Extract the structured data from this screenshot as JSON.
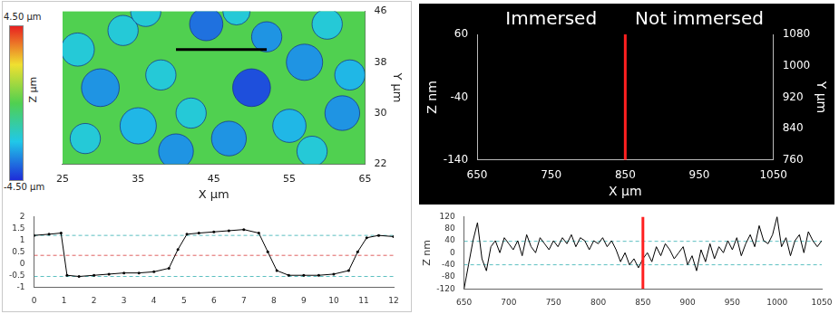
{
  "chart_data": [
    {
      "type": "bubble",
      "x_label": "X µm",
      "y_label": "Y µm",
      "z_label": "Z µm",
      "xlim": [
        25,
        65
      ],
      "xticks": [
        25,
        35,
        45,
        55,
        65
      ],
      "ylim": [
        22,
        46
      ],
      "yticks": [
        22,
        30,
        38,
        46
      ],
      "x": [
        27,
        30,
        33,
        35,
        28,
        38,
        40,
        42,
        44,
        47,
        50,
        52,
        55,
        57,
        60,
        62,
        58,
        63,
        48,
        36
      ],
      "y": [
        40,
        34,
        43,
        28,
        26,
        36,
        24,
        30,
        44,
        26,
        34,
        42,
        28,
        38,
        44,
        30,
        24,
        36,
        46,
        46
      ],
      "radius": [
        2.2,
        2.5,
        2,
        2.4,
        2,
        2,
        2.3,
        2,
        2.2,
        2.3,
        2.5,
        2,
        2.2,
        2.4,
        2,
        2.3,
        2,
        2,
        1.8,
        2
      ],
      "depth": [
        -2,
        -3,
        -2,
        -2.5,
        -2,
        -2,
        -3,
        -2,
        -3.5,
        -3,
        -4,
        -3,
        -2.5,
        -3,
        -2,
        -3,
        -2,
        -2.5,
        -2,
        -2
      ],
      "surface_level": 0,
      "colorbar": {
        "range": [
          -4.5,
          4.5
        ],
        "ticks": [
          {
            "value": 4.5,
            "label": "4.50 µm"
          },
          {
            "value": -4.5,
            "label": "-4.50 µm"
          }
        ]
      },
      "profile_line": {
        "x": [
          40,
          52
        ],
        "y": [
          40,
          40
        ],
        "color": "#000000"
      },
      "grid": false
    },
    {
      "type": "line",
      "marker": "dot",
      "color": "#000000",
      "xlim": [
        0,
        12
      ],
      "xticks": [
        0,
        1,
        2,
        3,
        4,
        5,
        6,
        7,
        8,
        9,
        10,
        11,
        12
      ],
      "ylim": [
        -1,
        2
      ],
      "yticks": [
        -1,
        -0.5,
        0,
        0.5,
        1,
        1.5,
        2
      ],
      "x": [
        0,
        0.5,
        0.9,
        1.1,
        1.5,
        2,
        2.5,
        3,
        3.5,
        4,
        4.5,
        4.8,
        5.1,
        5.5,
        6,
        6.5,
        7,
        7.5,
        7.8,
        8.1,
        8.5,
        9,
        9.5,
        10,
        10.5,
        10.8,
        11.1,
        11.5,
        12
      ],
      "values": [
        1.2,
        1.25,
        1.3,
        -0.5,
        -0.55,
        -0.5,
        -0.45,
        -0.4,
        -0.4,
        -0.35,
        -0.2,
        0.6,
        1.25,
        1.3,
        1.35,
        1.4,
        1.45,
        1.3,
        0.5,
        -0.3,
        -0.5,
        -0.5,
        -0.5,
        -0.45,
        -0.3,
        0.5,
        1.1,
        1.2,
        1.15
      ],
      "reference_lines": [
        {
          "value": 1.2,
          "color": "#5bbfc0",
          "line_style": "dashed"
        },
        {
          "value": 0.35,
          "color": "#e06060",
          "line_style": "dashed"
        },
        {
          "value": -0.55,
          "color": "#5bbfc0",
          "line_style": "dashed"
        }
      ],
      "grid": false
    },
    {
      "type": "line",
      "annotations": [
        "Immersed",
        "Not immersed"
      ],
      "x_label": "X µm",
      "y_label": "Y µm",
      "y2_label": "Z nm",
      "xlim": [
        650,
        1050
      ],
      "xticks": [
        650,
        750,
        850,
        950,
        1050
      ],
      "ylim": [
        760,
        1080
      ],
      "yticks": [
        760,
        840,
        920,
        1000,
        1080
      ],
      "y2lim": [
        -140,
        60
      ],
      "y2ticks": [
        -140,
        -40,
        60
      ],
      "divider": {
        "x": 850,
        "color": "#ff2020"
      },
      "grid": false
    },
    {
      "type": "line",
      "y_label": "Z nm",
      "color": "#000000",
      "xlim": [
        650,
        1050
      ],
      "xticks": [
        650,
        700,
        750,
        800,
        850,
        900,
        950,
        1000,
        1050
      ],
      "ylim": [
        -120,
        120
      ],
      "yticks": [
        -120,
        -80,
        -40,
        0,
        40,
        80,
        120
      ],
      "x": [
        650,
        655,
        660,
        665,
        670,
        675,
        680,
        685,
        690,
        695,
        700,
        705,
        710,
        715,
        720,
        725,
        730,
        735,
        740,
        745,
        750,
        755,
        760,
        765,
        770,
        775,
        780,
        785,
        790,
        795,
        800,
        805,
        810,
        815,
        820,
        825,
        830,
        835,
        840,
        845,
        850,
        855,
        860,
        865,
        870,
        875,
        880,
        885,
        890,
        895,
        900,
        905,
        910,
        915,
        920,
        925,
        930,
        935,
        940,
        945,
        950,
        955,
        960,
        965,
        970,
        975,
        980,
        985,
        990,
        995,
        1000,
        1005,
        1010,
        1015,
        1020,
        1025,
        1030,
        1035,
        1040,
        1045,
        1050
      ],
      "values": [
        -120,
        -40,
        40,
        100,
        -20,
        -60,
        20,
        40,
        0,
        50,
        30,
        10,
        40,
        -10,
        60,
        20,
        0,
        50,
        30,
        10,
        40,
        20,
        50,
        30,
        60,
        20,
        50,
        40,
        10,
        40,
        30,
        50,
        20,
        40,
        10,
        -30,
        0,
        -40,
        -20,
        -50,
        -20,
        0,
        -30,
        20,
        -10,
        30,
        10,
        -20,
        0,
        20,
        -40,
        -10,
        -60,
        10,
        -30,
        30,
        -20,
        20,
        0,
        40,
        10,
        50,
        -10,
        30,
        60,
        20,
        90,
        40,
        30,
        60,
        120,
        20,
        50,
        -10,
        40,
        60,
        0,
        70,
        40,
        20,
        40
      ],
      "reference_lines": [
        {
          "value": 38,
          "color": "#5bbfc0",
          "line_style": "dashed"
        },
        {
          "value": -40,
          "color": "#5bbfc0",
          "line_style": "dashed"
        }
      ],
      "divider": {
        "x": 850,
        "color": "#ff2020"
      },
      "grid": false
    }
  ]
}
